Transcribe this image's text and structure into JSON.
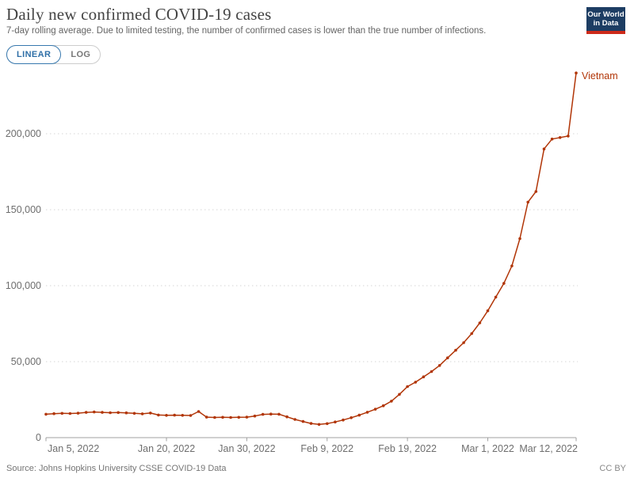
{
  "header": {
    "title": "Daily new confirmed COVID-19 cases",
    "subtitle": "7-day rolling average. Due to limited testing, the number of confirmed cases is lower than the true number of infections.",
    "logo": {
      "line1": "Our World",
      "line2": "in Data"
    }
  },
  "toolbar": {
    "linear_label": "LINEAR",
    "log_label": "LOG",
    "active": "LINEAR"
  },
  "chart_data": {
    "type": "line",
    "title": "Daily new confirmed COVID-19 cases",
    "grid": true,
    "ylim": [
      0,
      240000
    ],
    "y_ticks": [
      0,
      50000,
      100000,
      150000,
      200000
    ],
    "x_ticks": [
      {
        "label": "Jan 5, 2022",
        "date": "2022-01-05"
      },
      {
        "label": "Jan 20, 2022",
        "date": "2022-01-20"
      },
      {
        "label": "Jan 30, 2022",
        "date": "2022-01-30"
      },
      {
        "label": "Feb 9, 2022",
        "date": "2022-02-09"
      },
      {
        "label": "Feb 19, 2022",
        "date": "2022-02-19"
      },
      {
        "label": "Mar 1, 2022",
        "date": "2022-03-01"
      },
      {
        "label": "Mar 12, 2022",
        "date": "2022-03-12"
      }
    ],
    "series": [
      {
        "name": "Vietnam",
        "color": "#b13507",
        "x": [
          "2022-01-05",
          "2022-01-06",
          "2022-01-07",
          "2022-01-08",
          "2022-01-09",
          "2022-01-10",
          "2022-01-11",
          "2022-01-12",
          "2022-01-13",
          "2022-01-14",
          "2022-01-15",
          "2022-01-16",
          "2022-01-17",
          "2022-01-18",
          "2022-01-19",
          "2022-01-20",
          "2022-01-21",
          "2022-01-22",
          "2022-01-23",
          "2022-01-24",
          "2022-01-25",
          "2022-01-26",
          "2022-01-27",
          "2022-01-28",
          "2022-01-29",
          "2022-01-30",
          "2022-01-31",
          "2022-02-01",
          "2022-02-02",
          "2022-02-03",
          "2022-02-04",
          "2022-02-05",
          "2022-02-06",
          "2022-02-07",
          "2022-02-08",
          "2022-02-09",
          "2022-02-10",
          "2022-02-11",
          "2022-02-12",
          "2022-02-13",
          "2022-02-14",
          "2022-02-15",
          "2022-02-16",
          "2022-02-17",
          "2022-02-18",
          "2022-02-19",
          "2022-02-20",
          "2022-02-21",
          "2022-02-22",
          "2022-02-23",
          "2022-02-24",
          "2022-02-25",
          "2022-02-26",
          "2022-02-27",
          "2022-02-28",
          "2022-03-01",
          "2022-03-02",
          "2022-03-03",
          "2022-03-04",
          "2022-03-05",
          "2022-03-06",
          "2022-03-07",
          "2022-03-08",
          "2022-03-09",
          "2022-03-10",
          "2022-03-11",
          "2022-03-12"
        ],
        "values": [
          15400,
          15800,
          16000,
          15900,
          16100,
          16600,
          16900,
          16600,
          16400,
          16500,
          16300,
          16000,
          15700,
          16200,
          14900,
          14700,
          14800,
          14700,
          14600,
          17200,
          13500,
          13300,
          13400,
          13300,
          13400,
          13500,
          14200,
          15300,
          15500,
          15400,
          13700,
          12000,
          10600,
          9300,
          8700,
          9200,
          10300,
          11600,
          13100,
          14800,
          16700,
          18700,
          21000,
          24000,
          28500,
          33600,
          36500,
          40000,
          43500,
          47500,
          52500,
          57500,
          62500,
          68500,
          75500,
          83500,
          92500,
          101500,
          113000,
          131000,
          155000,
          162000,
          190000,
          196500,
          197500,
          198500,
          240000
        ]
      }
    ],
    "end_label": "Vietnam"
  },
  "footer": {
    "source": "Source: Johns Hopkins University CSSE COVID-19 Data",
    "license": "CC BY"
  }
}
